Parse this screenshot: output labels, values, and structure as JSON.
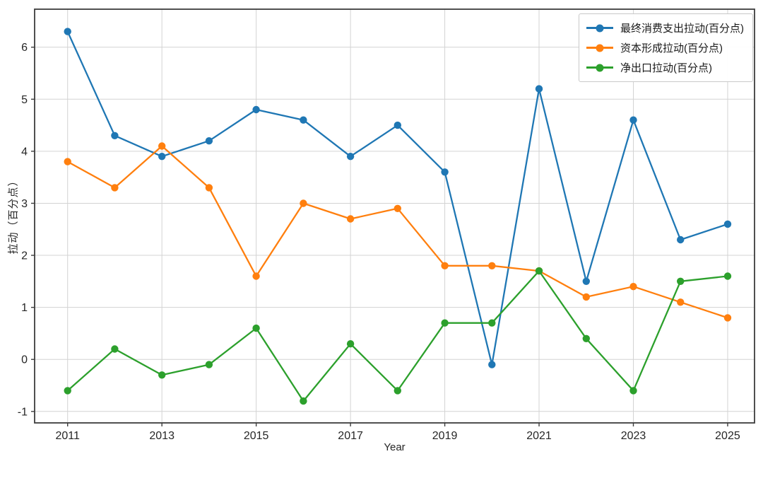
{
  "chart_data": {
    "type": "line",
    "title": "",
    "xlabel": "Year",
    "ylabel": "拉动（百分点）",
    "x": [
      2011,
      2012,
      2013,
      2014,
      2015,
      2016,
      2017,
      2018,
      2019,
      2020,
      2021,
      2022,
      2023,
      2024,
      2025
    ],
    "series": [
      {
        "name": "最终消费支出拉动(百分点)",
        "color": "#1f77b4",
        "values": [
          6.3,
          4.3,
          3.9,
          4.2,
          4.8,
          4.6,
          3.9,
          4.5,
          3.6,
          -0.1,
          5.2,
          1.5,
          4.6,
          2.3,
          2.6
        ]
      },
      {
        "name": "资本形成拉动(百分点)",
        "color": "#ff7f0e",
        "values": [
          3.8,
          3.3,
          4.1,
          3.3,
          1.6,
          3.0,
          2.7,
          2.9,
          1.8,
          1.8,
          1.7,
          1.2,
          1.4,
          1.1,
          0.8
        ]
      },
      {
        "name": "净出口拉动(百分点)",
        "color": "#2ca02c",
        "values": [
          -0.6,
          0.2,
          -0.3,
          -0.1,
          0.6,
          -0.8,
          0.3,
          -0.6,
          0.7,
          0.7,
          1.7,
          0.4,
          -0.6,
          1.5,
          1.6
        ]
      }
    ],
    "x_ticks": [
      2011,
      2013,
      2015,
      2017,
      2019,
      2021,
      2023,
      2025
    ],
    "y_ticks": [
      -1,
      0,
      1,
      2,
      3,
      4,
      5,
      6
    ],
    "xlim": [
      2010.3,
      2025.57
    ],
    "ylim": [
      -1.22,
      6.73
    ],
    "grid": true,
    "legend_position": "top-right",
    "grid_color": "#d3d3d3",
    "spine_color": "#3c3c3c"
  }
}
